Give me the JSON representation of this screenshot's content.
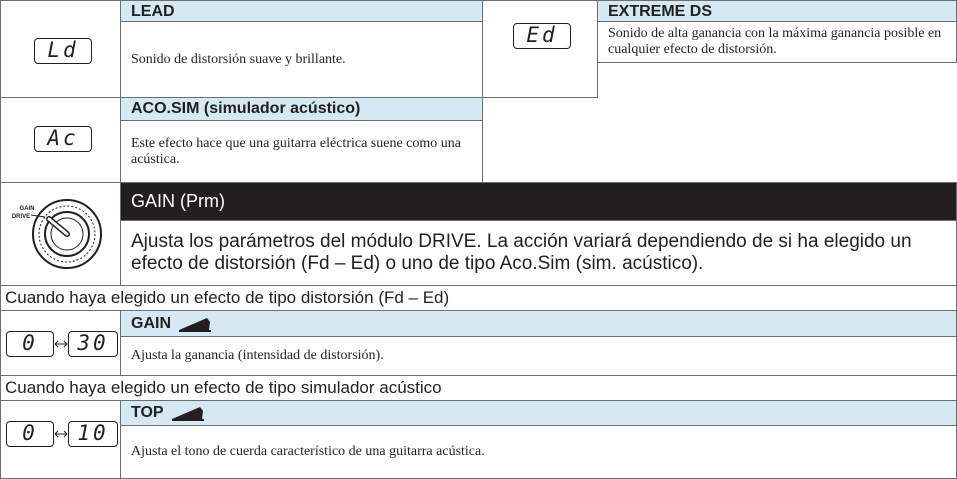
{
  "effects": [
    {
      "display": "Ld",
      "name": "LEAD",
      "description": "Sonido de distorsión suave y brillante."
    },
    {
      "display": "Ed",
      "name": "EXTREME DS",
      "description": "Sonido de alta ganancia con la máxima ganancia posible en cualquier efecto de distorsión."
    },
    {
      "display": "Ac",
      "name": "ACO.SIM (simulador acústico)",
      "description": "Este efecto hace que una guitarra eléctrica suene como una acústica."
    }
  ],
  "parameter": {
    "knob_labels": [
      "GAIN",
      "DRIVE"
    ],
    "title": "GAIN (Prm)",
    "description": "Ajusta los parámetros del módulo DRIVE. La acción variará dependiendo de si ha elegido un efecto de distorsión (Fd – Ed) o uno de tipo Aco.Sim (sim. acústico)."
  },
  "sections": [
    {
      "condition": "Cuando haya elegido un efecto de tipo distorsión (Fd – Ed)",
      "range": [
        "0",
        "30"
      ],
      "name": "GAIN",
      "description": "Ajusta la ganancia (intensidad de distorsión)."
    },
    {
      "condition": "Cuando haya elegido un efecto de tipo simulador acústico",
      "range": [
        "0",
        "10"
      ],
      "name": "TOP",
      "description": "Ajusta el tono de cuerda característico de una guitarra acústica."
    }
  ]
}
